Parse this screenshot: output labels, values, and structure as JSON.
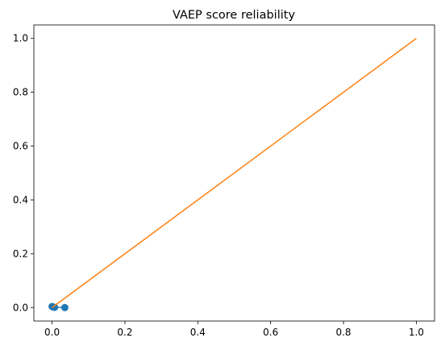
{
  "chart_data": {
    "type": "scatter",
    "title": "VAEP score reliability",
    "xlabel": "",
    "ylabel": "",
    "xlim": [
      -0.05,
      1.05
    ],
    "ylim": [
      -0.05,
      1.05
    ],
    "x_ticks": [
      "0.0",
      "0.2",
      "0.4",
      "0.6",
      "0.8",
      "1.0"
    ],
    "y_ticks": [
      "0.0",
      "0.2",
      "0.4",
      "0.6",
      "0.8",
      "1.0"
    ],
    "x_tick_values": [
      0.0,
      0.2,
      0.4,
      0.6,
      0.8,
      1.0
    ],
    "y_tick_values": [
      0.0,
      0.2,
      0.4,
      0.6,
      0.8,
      1.0
    ],
    "grid": false,
    "series": [
      {
        "type": "line-marker",
        "color": "#1f77b4",
        "x": [
          0.0,
          0.003,
          0.007,
          0.035
        ],
        "y": [
          0.004,
          0.002,
          0.001,
          0.0
        ]
      },
      {
        "type": "line",
        "color": "#ff7f0e",
        "x": [
          0.0,
          1.0
        ],
        "y": [
          0.0,
          1.0
        ]
      }
    ]
  }
}
